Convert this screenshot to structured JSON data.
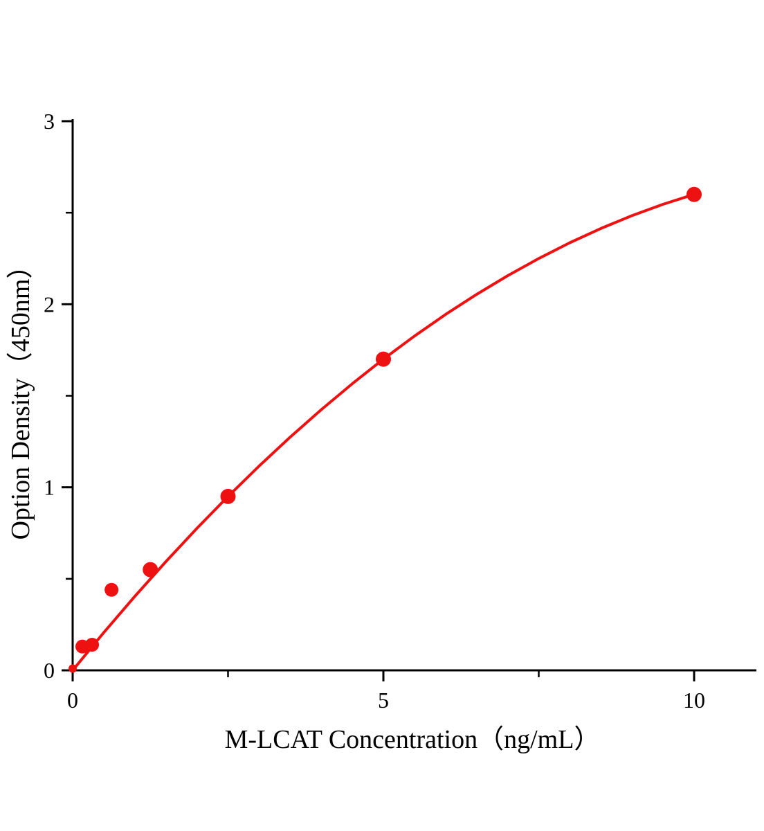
{
  "chart_data": {
    "type": "scatter",
    "title": "",
    "xlabel": "M-LCAT Concentration（ng/mL）",
    "ylabel": "Option Density（450nm）",
    "xlim": [
      0,
      11
    ],
    "ylim": [
      0,
      3
    ],
    "grid": false,
    "legend": false,
    "background": "#ffffff",
    "axis_color": "#000000",
    "x_ticks": {
      "major": [
        0,
        5,
        10
      ],
      "minor": [
        2.5,
        7.5
      ]
    },
    "y_ticks": {
      "major": [
        0,
        1,
        2,
        3
      ],
      "minor": [
        0.5,
        1.5,
        2.5
      ]
    },
    "series": [
      {
        "name": "standards",
        "type": "scatter",
        "color": "#ee1111",
        "points": [
          {
            "x": 0,
            "y": 0.01,
            "r": 6
          },
          {
            "x": 0.156,
            "y": 0.13,
            "r": 10
          },
          {
            "x": 0.3125,
            "y": 0.14,
            "r": 10
          },
          {
            "x": 0.625,
            "y": 0.44,
            "r": 10
          },
          {
            "x": 1.25,
            "y": 0.55,
            "r": 11
          },
          {
            "x": 2.5,
            "y": 0.95,
            "r": 11
          },
          {
            "x": 5,
            "y": 1.7,
            "r": 11
          },
          {
            "x": 10,
            "y": 2.6,
            "r": 11
          }
        ]
      },
      {
        "name": "fit-curve",
        "type": "line",
        "color": "#ee1111",
        "width": 4,
        "x": [
          0,
          0.5,
          1,
          1.5,
          2,
          2.5,
          3,
          3.5,
          4,
          4.5,
          5,
          5.5,
          6,
          6.5,
          7,
          7.5,
          8,
          8.5,
          9,
          9.5,
          10
        ],
        "y": [
          0,
          0.206,
          0.404,
          0.594,
          0.776,
          0.95,
          1.116,
          1.274,
          1.424,
          1.566,
          1.7,
          1.826,
          1.944,
          2.054,
          2.156,
          2.25,
          2.336,
          2.414,
          2.484,
          2.546,
          2.6
        ]
      }
    ]
  }
}
